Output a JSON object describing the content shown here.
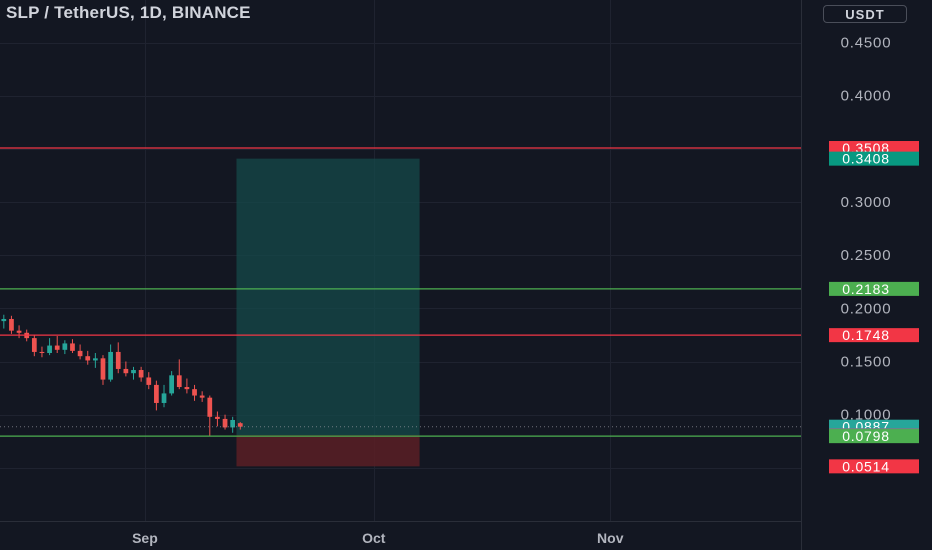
{
  "header": {
    "title": "SLP / TetherUS, 1D, BINANCE",
    "currency": "USDT"
  },
  "colors": {
    "background": "#131722",
    "grid": "#1f2330",
    "up": "#26a69a",
    "down": "#ef5350",
    "support_line": "#4caf50",
    "resistance_line": "#f23645",
    "profit_zone": "#154a49",
    "loss_zone": "#5a1e25",
    "axis_text": "#b2b5be"
  },
  "chart_data": {
    "type": "candlestick",
    "title": "SLP / TetherUS, 1D, BINANCE",
    "y_axis": {
      "ticks": [
        0.45,
        0.4,
        0.3,
        0.25,
        0.2,
        0.15,
        0.1
      ],
      "tick_labels": [
        "0.4500",
        "0.4000",
        "0.3000",
        "0.2500",
        "0.2000",
        "0.1500",
        "0.1000"
      ],
      "range": [
        0.0,
        0.49
      ]
    },
    "x_axis": {
      "tick_labels": [
        "Sep",
        "Oct",
        "Nov"
      ],
      "tick_dates": [
        "2021-09-01",
        "2021-10-01",
        "2021-11-01"
      ],
      "range": [
        "2021-08-13",
        "2021-11-26"
      ]
    },
    "candles": [
      {
        "date": "2021-08-13",
        "o": 0.188,
        "h": 0.194,
        "l": 0.181,
        "c": 0.19
      },
      {
        "date": "2021-08-14",
        "o": 0.19,
        "h": 0.193,
        "l": 0.176,
        "c": 0.179
      },
      {
        "date": "2021-08-15",
        "o": 0.179,
        "h": 0.184,
        "l": 0.172,
        "c": 0.177
      },
      {
        "date": "2021-08-16",
        "o": 0.177,
        "h": 0.18,
        "l": 0.169,
        "c": 0.172
      },
      {
        "date": "2021-08-17",
        "o": 0.172,
        "h": 0.175,
        "l": 0.155,
        "c": 0.159
      },
      {
        "date": "2021-08-18",
        "o": 0.159,
        "h": 0.164,
        "l": 0.154,
        "c": 0.158
      },
      {
        "date": "2021-08-19",
        "o": 0.158,
        "h": 0.172,
        "l": 0.156,
        "c": 0.165
      },
      {
        "date": "2021-08-20",
        "o": 0.165,
        "h": 0.174,
        "l": 0.158,
        "c": 0.161
      },
      {
        "date": "2021-08-21",
        "o": 0.161,
        "h": 0.17,
        "l": 0.157,
        "c": 0.167
      },
      {
        "date": "2021-08-22",
        "o": 0.167,
        "h": 0.171,
        "l": 0.158,
        "c": 0.16
      },
      {
        "date": "2021-08-23",
        "o": 0.16,
        "h": 0.166,
        "l": 0.152,
        "c": 0.155
      },
      {
        "date": "2021-08-24",
        "o": 0.155,
        "h": 0.16,
        "l": 0.147,
        "c": 0.151
      },
      {
        "date": "2021-08-25",
        "o": 0.151,
        "h": 0.158,
        "l": 0.144,
        "c": 0.153
      },
      {
        "date": "2021-08-26",
        "o": 0.153,
        "h": 0.156,
        "l": 0.128,
        "c": 0.133
      },
      {
        "date": "2021-08-27",
        "o": 0.133,
        "h": 0.166,
        "l": 0.131,
        "c": 0.159
      },
      {
        "date": "2021-08-28",
        "o": 0.159,
        "h": 0.168,
        "l": 0.139,
        "c": 0.143
      },
      {
        "date": "2021-08-29",
        "o": 0.143,
        "h": 0.15,
        "l": 0.136,
        "c": 0.139
      },
      {
        "date": "2021-08-30",
        "o": 0.139,
        "h": 0.145,
        "l": 0.133,
        "c": 0.142
      },
      {
        "date": "2021-08-31",
        "o": 0.142,
        "h": 0.145,
        "l": 0.131,
        "c": 0.135
      },
      {
        "date": "2021-09-01",
        "o": 0.135,
        "h": 0.14,
        "l": 0.124,
        "c": 0.128
      },
      {
        "date": "2021-09-02",
        "o": 0.128,
        "h": 0.132,
        "l": 0.104,
        "c": 0.111
      },
      {
        "date": "2021-09-03",
        "o": 0.111,
        "h": 0.128,
        "l": 0.107,
        "c": 0.12
      },
      {
        "date": "2021-09-04",
        "o": 0.12,
        "h": 0.141,
        "l": 0.118,
        "c": 0.137
      },
      {
        "date": "2021-09-05",
        "o": 0.137,
        "h": 0.152,
        "l": 0.124,
        "c": 0.126
      },
      {
        "date": "2021-09-06",
        "o": 0.126,
        "h": 0.134,
        "l": 0.12,
        "c": 0.124
      },
      {
        "date": "2021-09-07",
        "o": 0.124,
        "h": 0.128,
        "l": 0.113,
        "c": 0.118
      },
      {
        "date": "2021-09-08",
        "o": 0.118,
        "h": 0.122,
        "l": 0.112,
        "c": 0.116
      },
      {
        "date": "2021-09-09",
        "o": 0.116,
        "h": 0.118,
        "l": 0.08,
        "c": 0.098
      },
      {
        "date": "2021-09-10",
        "o": 0.098,
        "h": 0.103,
        "l": 0.089,
        "c": 0.096
      },
      {
        "date": "2021-09-11",
        "o": 0.096,
        "h": 0.1,
        "l": 0.086,
        "c": 0.088
      },
      {
        "date": "2021-09-12",
        "o": 0.088,
        "h": 0.098,
        "l": 0.083,
        "c": 0.095
      },
      {
        "date": "2021-09-13",
        "o": 0.092,
        "h": 0.093,
        "l": 0.086,
        "c": 0.0887
      }
    ],
    "horizontal_levels": [
      {
        "value": 0.3508,
        "label": "0.3508",
        "color": "#f23645",
        "kind": "resistance"
      },
      {
        "value": 0.2183,
        "label": "0.2183",
        "color": "#4caf50",
        "kind": "support"
      },
      {
        "value": 0.1748,
        "label": "0.1748",
        "color": "#f23645",
        "kind": "resistance"
      },
      {
        "value": 0.0798,
        "label": "0.0798",
        "color": "#4caf50",
        "kind": "support"
      }
    ],
    "position": {
      "start": "2021-09-13",
      "end": "2021-10-07",
      "entry": 0.0807,
      "target": 0.3408,
      "stop": 0.0514
    },
    "price_labels": [
      {
        "value": 0.3508,
        "label": "0.3508",
        "color": "#f23645"
      },
      {
        "value": 0.3408,
        "label": "0.3408",
        "color": "#089981"
      },
      {
        "value": 0.2183,
        "label": "0.2183",
        "color": "#4caf50"
      },
      {
        "value": 0.1748,
        "label": "0.1748",
        "color": "#f23645"
      },
      {
        "value": 0.0887,
        "label": "0.0887",
        "color": "#26a69a"
      },
      {
        "value": 0.0807,
        "label": "0.0807",
        "color": "#787b86"
      },
      {
        "value": 0.0798,
        "label": "0.0798",
        "color": "#4caf50"
      },
      {
        "value": 0.0514,
        "label": "0.0514",
        "color": "#f23645"
      }
    ],
    "last_price": 0.0887
  }
}
